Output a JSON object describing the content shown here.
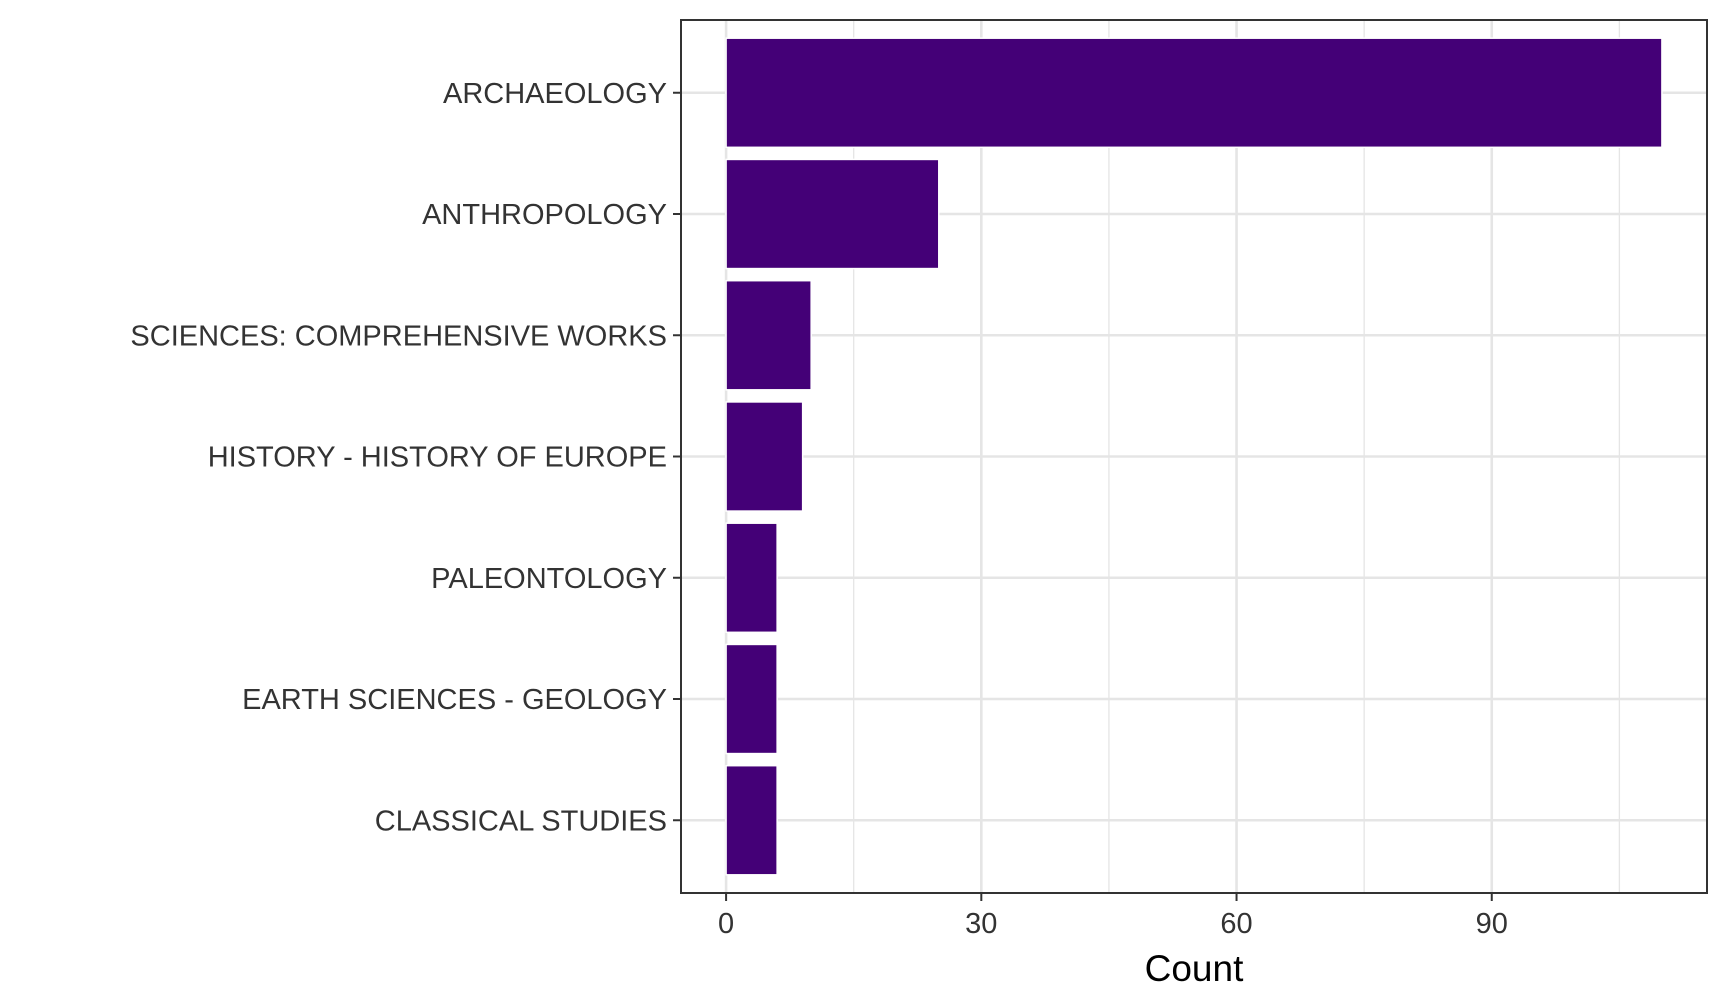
{
  "chart_data": {
    "type": "bar",
    "orientation": "horizontal",
    "title": "",
    "xlabel": "Count",
    "ylabel": "",
    "categories": [
      "ARCHAEOLOGY",
      "ANTHROPOLOGY",
      "SCIENCES: COMPREHENSIVE WORKS",
      "HISTORY - HISTORY OF EUROPE",
      "PALEONTOLOGY",
      "EARTH SCIENCES - GEOLOGY",
      "CLASSICAL STUDIES"
    ],
    "values": [
      110,
      25,
      10,
      9,
      6,
      6,
      6
    ],
    "xlim": [
      -5.3,
      115.3
    ],
    "xticks": [
      0,
      30,
      60,
      90
    ],
    "xtick_labels": [
      "0",
      "30",
      "60",
      "90"
    ],
    "grid": true,
    "legend": "none",
    "colors": {
      "bar": "#440077",
      "grid": "#e5e5e5",
      "panel_border": "#333333",
      "text": "#333333"
    }
  }
}
